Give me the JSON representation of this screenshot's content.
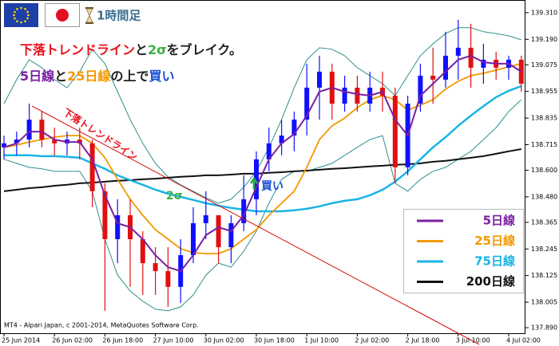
{
  "header": {
    "timeframe": "1時間足",
    "headline": [
      {
        "text": "下落トレンドライン",
        "color": "#e8101a"
      },
      {
        "text": "と",
        "color": "#222222"
      },
      {
        "text": "2σ",
        "color": "#3cb043"
      },
      {
        "text": "をブレイク。",
        "color": "#222222"
      }
    ],
    "subline": [
      {
        "text": "5日線",
        "color": "#7a1fa2"
      },
      {
        "text": "と",
        "color": "#222222"
      },
      {
        "text": "25日線",
        "color": "#f39800"
      },
      {
        "text": "の上で",
        "color": "#222222"
      },
      {
        "text": "買い",
        "color": "#1a4fd6"
      }
    ]
  },
  "chart_data": {
    "type": "candlestick",
    "categories": [
      "25 Jun 2014",
      null,
      null,
      null,
      "26 Jun 02:00",
      null,
      null,
      null,
      "26 Jun 18:00",
      null,
      null,
      null,
      "27 Jun 10:00",
      null,
      null,
      null,
      "30 Jun 02:00",
      null,
      null,
      null,
      "30 Jun 18:00",
      null,
      null,
      null,
      "1 Jul 10:00",
      null,
      null,
      null,
      "2 Jul 02:00",
      null,
      null,
      null,
      "2 Jul 18:00",
      null,
      null,
      null,
      "3 Jul 10:00",
      null,
      null,
      null,
      "4 Jul 02:00",
      null
    ],
    "open": [
      138.703,
      138.721,
      138.738,
      138.828,
      138.738,
      138.721,
      138.738,
      138.721,
      138.505,
      138.289,
      138.397,
      138.289,
      138.181,
      138.145,
      138.074,
      138.217,
      138.361,
      138.397,
      138.253,
      138.361,
      138.469,
      138.649,
      138.721,
      138.756,
      138.828,
      138.972,
      139.044,
      138.9,
      138.972,
      138.9,
      138.972,
      138.936,
      138.613,
      138.9,
      139.026,
      139.008,
      139.116,
      139.152,
      139.062,
      139.098,
      139.062,
      139.098
    ],
    "high": [
      138.756,
      138.774,
      138.9,
      138.864,
      138.792,
      138.774,
      138.792,
      138.738,
      138.541,
      138.469,
      138.469,
      138.325,
      138.253,
      138.253,
      138.289,
      138.433,
      138.505,
      138.397,
      138.397,
      138.577,
      138.685,
      138.792,
      138.828,
      138.864,
      139.08,
      139.116,
      139.08,
      139.026,
      139.026,
      139.044,
      139.044,
      138.972,
      138.936,
      139.08,
      139.152,
      139.224,
      139.278,
      139.26,
      139.17,
      139.134,
      139.116,
      139.116
    ],
    "low": [
      138.649,
      138.667,
      138.703,
      138.703,
      138.667,
      138.667,
      138.649,
      138.433,
      137.966,
      138.181,
      138.074,
      138.038,
      138.038,
      137.984,
      138.002,
      138.181,
      138.289,
      138.181,
      138.181,
      138.325,
      138.397,
      138.595,
      138.667,
      138.685,
      138.756,
      138.828,
      138.828,
      138.864,
      138.864,
      138.864,
      138.864,
      138.541,
      138.577,
      138.864,
      138.9,
      138.972,
      139.008,
      138.972,
      138.99,
      139.008,
      139.008,
      138.954
    ],
    "close": [
      138.721,
      138.738,
      138.828,
      138.738,
      138.721,
      138.738,
      138.721,
      138.505,
      138.289,
      138.397,
      138.289,
      138.181,
      138.145,
      138.074,
      138.217,
      138.361,
      138.397,
      138.253,
      138.361,
      138.469,
      138.649,
      138.721,
      138.756,
      138.828,
      138.972,
      139.044,
      138.9,
      138.972,
      138.9,
      138.972,
      138.936,
      138.613,
      138.9,
      139.026,
      139.008,
      139.116,
      139.152,
      139.062,
      139.098,
      139.062,
      139.098,
      138.99
    ],
    "up_color": "#1010ff",
    "down_color": "#e01010",
    "bands": {
      "color": "#2f8f8f",
      "upper": [
        138.9,
        139.008,
        139.098,
        139.062,
        139.008,
        138.972,
        139.044,
        139.145,
        139.08,
        138.954,
        138.828,
        138.721,
        138.631,
        138.57,
        138.534,
        138.505,
        138.476,
        138.451,
        138.469,
        138.523,
        138.595,
        138.703,
        138.828,
        138.972,
        139.098,
        139.152,
        139.145,
        139.116,
        139.062,
        139.026,
        138.99,
        138.936,
        139.026,
        139.116,
        139.17,
        139.216,
        139.242,
        139.242,
        139.224,
        139.216,
        139.206,
        139.188
      ],
      "lower": [
        138.649,
        138.631,
        138.613,
        138.606,
        138.595,
        138.595,
        138.595,
        138.505,
        138.289,
        138.127,
        138.056,
        138.009,
        137.973,
        137.966,
        137.984,
        138.038,
        138.127,
        138.181,
        138.163,
        138.235,
        138.325,
        138.451,
        138.559,
        138.595,
        138.595,
        138.613,
        138.631,
        138.667,
        138.703,
        138.738,
        138.756,
        138.541,
        138.505,
        138.559,
        138.595,
        138.613,
        138.649,
        138.685,
        138.738,
        138.792,
        138.864,
        138.918
      ]
    },
    "series": [
      {
        "name": "5日線",
        "color": "#7a1fa2",
        "values": [
          138.703,
          138.721,
          138.774,
          138.774,
          138.738,
          138.727,
          138.727,
          138.649,
          138.487,
          138.361,
          138.343,
          138.289,
          138.217,
          138.163,
          138.145,
          138.217,
          138.307,
          138.343,
          138.325,
          138.397,
          138.523,
          138.649,
          138.721,
          138.763,
          138.846,
          138.954,
          138.972,
          138.954,
          138.943,
          138.936,
          138.954,
          138.828,
          138.756,
          138.936,
          138.99,
          139.044,
          139.098,
          139.116,
          139.087,
          139.08,
          139.08,
          139.044
        ]
      },
      {
        "name": "25日線",
        "color": "#f39800",
        "values": [
          138.703,
          138.713,
          138.727,
          138.738,
          138.749,
          138.756,
          138.756,
          138.721,
          138.656,
          138.559,
          138.469,
          138.397,
          138.332,
          138.289,
          138.246,
          138.228,
          138.224,
          138.224,
          138.246,
          138.289,
          138.332,
          138.397,
          138.451,
          138.505,
          138.613,
          138.738,
          138.8,
          138.835,
          138.882,
          138.918,
          138.936,
          138.918,
          138.871,
          138.893,
          138.918,
          138.965,
          139.001,
          139.026,
          139.037,
          139.051,
          139.066,
          139.08
        ]
      },
      {
        "name": "75日線",
        "color": "#19b4e6",
        "values": [
          138.667,
          138.667,
          138.667,
          138.663,
          138.663,
          138.66,
          138.656,
          138.631,
          138.606,
          138.577,
          138.555,
          138.534,
          138.512,
          138.494,
          138.48,
          138.466,
          138.451,
          138.44,
          138.43,
          138.422,
          138.415,
          138.415,
          138.415,
          138.419,
          138.426,
          138.437,
          138.451,
          138.462,
          138.469,
          138.487,
          138.512,
          138.548,
          138.595,
          138.649,
          138.703,
          138.749,
          138.8,
          138.846,
          138.889,
          138.929,
          138.958,
          138.979
        ]
      },
      {
        "name": "200日線",
        "color": "#111111",
        "values": [
          138.505,
          138.512,
          138.519,
          138.523,
          138.53,
          138.534,
          138.541,
          138.544,
          138.548,
          138.552,
          138.555,
          138.559,
          138.562,
          138.566,
          138.57,
          138.573,
          138.577,
          138.577,
          138.58,
          138.584,
          138.584,
          138.588,
          138.591,
          138.595,
          138.598,
          138.602,
          138.606,
          138.609,
          138.613,
          138.617,
          138.62,
          138.624,
          138.627,
          138.631,
          138.638,
          138.642,
          138.649,
          138.656,
          138.663,
          138.674,
          138.685,
          138.695
        ]
      }
    ],
    "ylim": [
      137.865,
      139.36
    ],
    "yticks": [
      {
        "value": 139.31,
        "label": "139.310"
      },
      {
        "value": 139.19,
        "label": "139.190"
      },
      139.075,
      138.955,
      138.835,
      138.715,
      {
        "value": 138.6,
        "label": "138.600"
      },
      {
        "value": 138.48,
        "label": "138.480"
      },
      138.365,
      138.245,
      138.125,
      138.005,
      {
        "value": 137.89,
        "label": "137.890"
      }
    ],
    "annotations": [
      {
        "text": "下落トレンドライン",
        "color": "#e8101a"
      },
      {
        "text": "2σ",
        "color": "#3cb043"
      },
      {
        "text": "買い",
        "color": "#1a4fd6"
      }
    ],
    "footer": "MT4 - Alpari Japan, c 2001-2014, MetaQuotes Software Corp."
  }
}
